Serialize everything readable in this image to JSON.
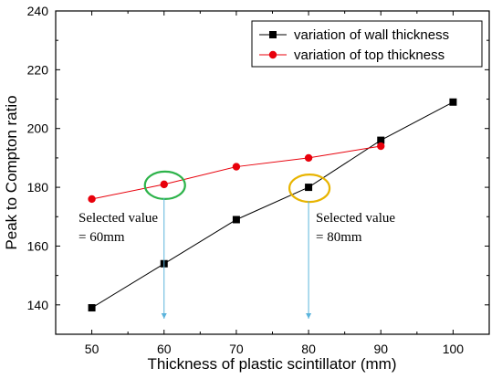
{
  "chart_data": {
    "type": "line",
    "xlabel": "Thickness of plastic scintillator (mm)",
    "ylabel": "Peak to Compton ratio",
    "xlim": [
      45,
      105
    ],
    "ylim": [
      130,
      240
    ],
    "xticks": [
      50,
      60,
      70,
      80,
      90,
      100
    ],
    "yticks": [
      140,
      160,
      180,
      200,
      220,
      240
    ],
    "grid": false,
    "legend_position": "top-right",
    "series": [
      {
        "name": "variation of wall thickness",
        "color": "#000000",
        "marker": "square",
        "x": [
          50,
          60,
          70,
          80,
          90,
          100
        ],
        "y": [
          139,
          154,
          169,
          180,
          196,
          209
        ]
      },
      {
        "name": "variation of top thickness",
        "color": "#e8000b",
        "marker": "circle",
        "x": [
          50,
          60,
          70,
          80,
          90
        ],
        "y": [
          176,
          181,
          187,
          190,
          194
        ]
      }
    ],
    "annotations": [
      {
        "lines": [
          "Selected value",
          "= 60mm"
        ],
        "circle_at": [
          60,
          181
        ],
        "circle_color": "#2db34a",
        "arrow_x": 60,
        "arrow_color": "#5bb4dc"
      },
      {
        "lines": [
          "Selected value",
          "= 80mm"
        ],
        "circle_at": [
          80,
          180
        ],
        "circle_color": "#e8b400",
        "arrow_x": 80,
        "arrow_color": "#5bb4dc"
      }
    ]
  }
}
